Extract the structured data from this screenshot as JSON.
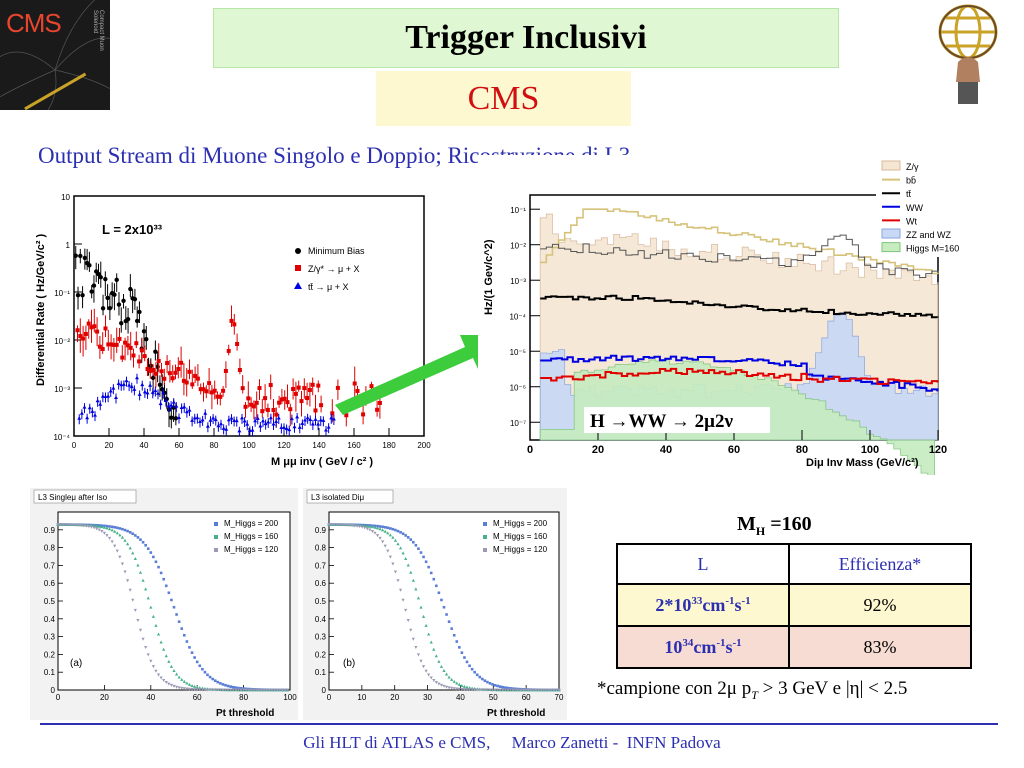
{
  "header": {
    "title": "Trigger Inclusivi",
    "subtitle": "CMS",
    "logo_left_text": "CMS",
    "logo_left_subtext": "Compact Muon Solenoid"
  },
  "stream_title": "Output Stream di Muone Singolo e Doppio; Ricostruzione di L3",
  "left_plot": {
    "ylabel": "Differential Rate ( Hz/GeV/c² )",
    "xlabel": "M μμ inv ( GeV / c² )",
    "lumi_label": "L = 2x10³³",
    "legend": [
      "Minimum Bias",
      "Z/γ* → μ + X",
      "tt̄ → μ + X"
    ],
    "x_ticks": [
      "0",
      "20",
      "40",
      "60",
      "80",
      "100",
      "120",
      "140",
      "160",
      "180",
      "200"
    ],
    "y_ticks": [
      "10",
      "1",
      "10⁻¹",
      "10⁻²",
      "10⁻³",
      "10⁻⁴"
    ],
    "colors": {
      "minbias": "#000000",
      "zgamma": "#e00000",
      "ttbar": "#0000e0"
    }
  },
  "right_plot": {
    "ylabel": "Hz/(1 Gev/c^2)",
    "xlabel": "Diμ Inv Mass (GeV/c²)",
    "annotation": "H →WW → 2μ2ν",
    "legend": [
      "Z/γ",
      "bb̄",
      "tt̄",
      "WW",
      "Wt",
      "ZZ and WZ",
      "Higgs M=160"
    ],
    "x_ticks": [
      "0",
      "20",
      "40",
      "60",
      "80",
      "100",
      "120"
    ],
    "y_ticks": [
      "10⁻¹",
      "10⁻²",
      "10⁻³",
      "10⁻⁴",
      "10⁻⁵",
      "10⁻⁶",
      "10⁻⁷"
    ]
  },
  "eff_plot_a": {
    "title": "L3 Singleμ after Iso",
    "xlabel": "Pt threshold",
    "panel_label": "(a)",
    "legend": [
      "M_Higgs = 200",
      "M_Higgs = 160",
      "M_Higgs = 120"
    ],
    "x_ticks": [
      "0",
      "20",
      "40",
      "60",
      "80",
      "100"
    ],
    "y_ticks": [
      "0.9",
      "0.8",
      "0.7",
      "0.6",
      "0.5",
      "0.4",
      "0.3",
      "0.2",
      "0.1",
      "0"
    ]
  },
  "eff_plot_b": {
    "title": "L3 isolated Diμ",
    "xlabel": "Pt threshold",
    "panel_label": "(b)",
    "legend": [
      "M_Higgs = 200",
      "M_Higgs = 160",
      "M_Higgs = 120"
    ],
    "x_ticks": [
      "0",
      "10",
      "20",
      "30",
      "40",
      "50",
      "60",
      "70"
    ],
    "y_ticks": [
      "0.9",
      "0.8",
      "0.7",
      "0.6",
      "0.5",
      "0.4",
      "0.3",
      "0.2",
      "0.1",
      "0"
    ]
  },
  "table": {
    "title": "M",
    "title_sub": "H",
    "title_rest": " =160",
    "col_headers": [
      "L",
      "Efficienza*"
    ],
    "rows": [
      {
        "lumi": "2*10",
        "lumi_exp": "33",
        "lumi_rest": "cm",
        "lumi_exp2": "-1",
        "lumi_rest2": "s",
        "lumi_exp3": "-1",
        "eff": "92%"
      },
      {
        "lumi": "10",
        "lumi_exp": "34",
        "lumi_rest": "cm",
        "lumi_exp2": "-1",
        "lumi_rest2": "s",
        "lumi_exp3": "-1",
        "eff": "83%"
      }
    ]
  },
  "note": "*campione con 2μ p",
  "note_sub": "T",
  "note_rest": " > 3 GeV e |η| < 2.5",
  "footer": "Gli HLT di ATLAS e CMS,     Marco Zanetti -  INFN Padova"
}
